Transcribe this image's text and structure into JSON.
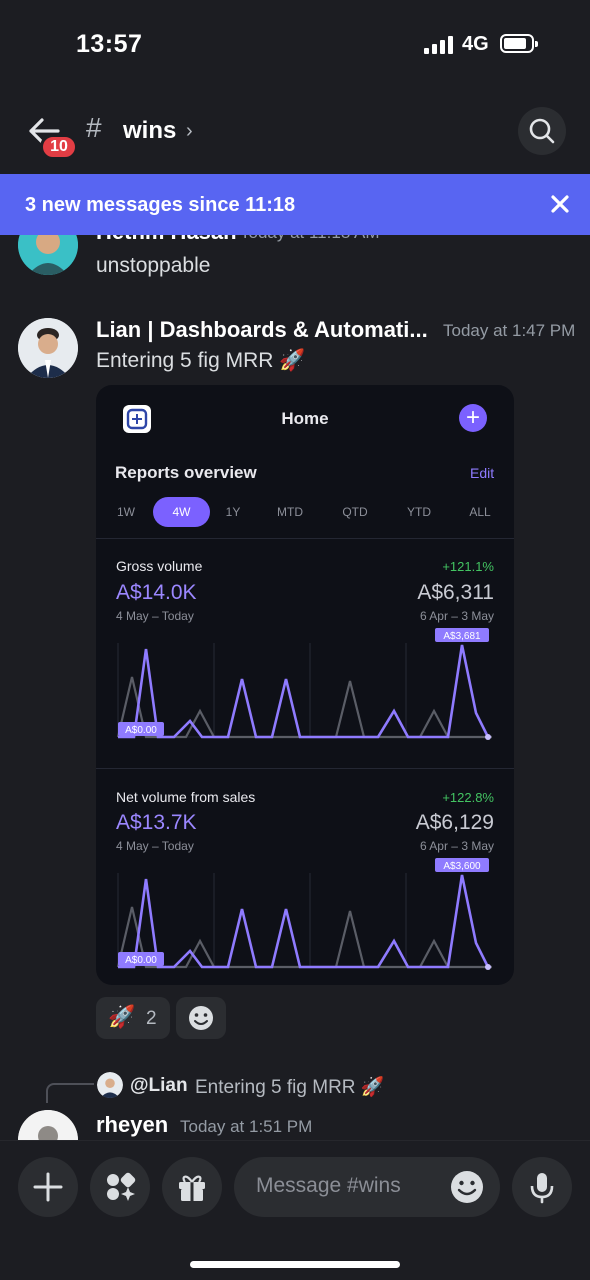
{
  "status": {
    "time": "13:57",
    "network": "4G"
  },
  "header": {
    "back_badge": "10",
    "hash": "#",
    "channel": "wins",
    "chevron": "›"
  },
  "banner": {
    "text": "3 new messages since 11:18"
  },
  "messages": [
    {
      "author": "Hethm Hasan",
      "time": "Today at 11:18 AM",
      "text": "unstoppable"
    },
    {
      "author": "Lian | Dashboards & Automati...",
      "time": "Today at 1:47 PM",
      "text": "Entering 5 fig MRR 🚀"
    }
  ],
  "card": {
    "title": "Home",
    "section_title": "Reports overview",
    "edit": "Edit",
    "tabs": [
      "1W",
      "4W",
      "1Y",
      "MTD",
      "QTD",
      "YTD",
      "ALL"
    ],
    "active_tab": "4W",
    "gross": {
      "title": "Gross volume",
      "pct": "+121.1%",
      "value": "A$14.0K",
      "prev_value": "A$6,311",
      "range": "4 May – Today",
      "prev_range": "6 Apr – 3 May",
      "max_label": "A$3,681",
      "min_label": "A$0.00"
    },
    "net": {
      "title": "Net volume from sales",
      "pct": "+122.8%",
      "value": "A$13.7K",
      "prev_value": "A$6,129",
      "range": "4 May – Today",
      "prev_range": "6 Apr – 3 May",
      "max_label": "A$3,600",
      "min_label": "A$0.00"
    }
  },
  "reactions": [
    {
      "emoji": "🚀",
      "count": "2"
    }
  ],
  "reply": {
    "ref_user": "@Lian",
    "ref_text": "Entering 5 fig MRR 🚀",
    "author": "rheyen",
    "time": "Today at 1:51 PM"
  },
  "composer": {
    "placeholder": "Message #wins"
  },
  "colors": {
    "accent": "#5865f2",
    "badge": "#e23d44",
    "chart_current": "#8f7bff",
    "chart_previous": "#5a5d66",
    "positive": "#43c462"
  }
}
